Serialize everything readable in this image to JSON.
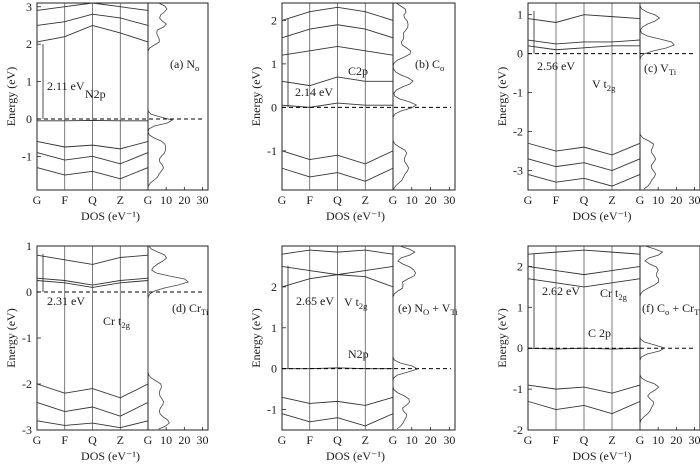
{
  "figure": {
    "panels": [
      {
        "label": "(a) N",
        "label_sub": "o",
        "ylabel": "Energy (eV)",
        "xlabel": "DOS (eV⁻¹)",
        "kpoints": [
          "G",
          "F",
          "Q",
          "Z",
          "G"
        ],
        "dos_ticks": [
          "10",
          "20",
          "30"
        ],
        "ylim": [
          -1.9,
          3.1
        ],
        "yticks": [
          -1,
          0,
          1,
          2,
          3
        ],
        "gap_text": "2.11 eV",
        "annotations": [
          {
            "text": "N2p",
            "sub": ""
          }
        ]
      },
      {
        "label": "(b) C",
        "label_sub": "o",
        "ylabel": "Energy (eV)",
        "xlabel": "DOS (eV⁻¹)",
        "kpoints": [
          "G",
          "F",
          "Q",
          "Z",
          "G"
        ],
        "dos_ticks": [
          "10",
          "20",
          "30"
        ],
        "ylim": [
          -1.9,
          2.4
        ],
        "yticks": [
          -1,
          0,
          1,
          2
        ],
        "gap_text": "2.14 eV",
        "annotations": [
          {
            "text": "C2p",
            "sub": ""
          }
        ]
      },
      {
        "label": "(c) V",
        "label_sub": "Ti",
        "ylabel": "Energy (eV)",
        "xlabel": "DOS (eV⁻¹)",
        "kpoints": [
          "G",
          "F",
          "Q",
          "Z",
          "G"
        ],
        "dos_ticks": [
          "10",
          "20",
          "30"
        ],
        "ylim": [
          -3.5,
          1.3
        ],
        "yticks": [
          -3,
          -2,
          -1,
          0,
          1
        ],
        "gap_text": "2.56 eV",
        "annotations": [
          {
            "text": "V t",
            "sub": "2g"
          }
        ]
      },
      {
        "label": "(d) Cr",
        "label_sub": "Ti",
        "ylabel": "Energy (eV)",
        "xlabel": "DOS (eV⁻¹)",
        "kpoints": [
          "G",
          "F",
          "Q",
          "Z",
          "G"
        ],
        "dos_ticks": [
          "10",
          "20",
          "30"
        ],
        "ylim": [
          -3,
          1
        ],
        "yticks": [
          -3,
          -2,
          -1,
          0,
          1
        ],
        "gap_text": "2.31 eV",
        "annotations": [
          {
            "text": "Cr t",
            "sub": "2g"
          }
        ]
      },
      {
        "label": "(e) N",
        "label_sub": "O",
        "label_extra": " + V",
        "label_extra_sub": "Ti",
        "ylabel": "Energy (eV)",
        "xlabel": "DOS (eV⁻¹)",
        "kpoints": [
          "G",
          "F",
          "Q",
          "Z",
          "G"
        ],
        "dos_ticks": [
          "10",
          "20",
          "30"
        ],
        "ylim": [
          -1.5,
          3.0
        ],
        "yticks": [
          -1,
          0,
          1,
          2
        ],
        "gap_text": "2.65 eV",
        "annotations": [
          {
            "text": "V t",
            "sub": "2g"
          },
          {
            "text": "N2p",
            "sub": ""
          }
        ]
      },
      {
        "label": "(f) C",
        "label_sub": "o",
        "label_extra": " + Cr",
        "label_extra_sub": "Ti",
        "ylabel": "Energy (eV)",
        "xlabel": "DOS (eV⁻¹)",
        "kpoints": [
          "G",
          "F",
          "Q",
          "Z",
          "G"
        ],
        "dos_ticks": [
          "10",
          "20",
          "30"
        ],
        "ylim": [
          -2.0,
          2.5
        ],
        "yticks": [
          -2,
          -1,
          0,
          1,
          2
        ],
        "gap_text": "2.62 eV",
        "annotations": [
          {
            "text": "Cr t",
            "sub": "2g"
          },
          {
            "text": "C 2p",
            "sub": ""
          }
        ]
      }
    ]
  },
  "chart_data": [
    {
      "type": "line",
      "panel": "(a)",
      "x": [
        "G",
        "F",
        "Q",
        "Z",
        "G"
      ],
      "ylim": [
        -1.9,
        3.1
      ],
      "fermi_level": 0,
      "band_gap_eV": 2.11,
      "series": [
        {
          "values": [
            -0.05,
            -0.05,
            -0.04,
            -0.05,
            -0.05
          ]
        },
        {
          "values": [
            2.06,
            2.2,
            2.5,
            2.3,
            2.06
          ]
        },
        {
          "values": [
            2.5,
            2.6,
            2.8,
            2.7,
            2.5
          ]
        },
        {
          "values": [
            2.9,
            3.0,
            3.1,
            3.0,
            2.9
          ]
        },
        {
          "values": [
            -0.6,
            -0.75,
            -0.7,
            -0.8,
            -0.6
          ]
        },
        {
          "values": [
            -0.9,
            -1.1,
            -1.0,
            -1.2,
            -0.9
          ]
        },
        {
          "values": [
            -1.3,
            -1.5,
            -1.4,
            -1.6,
            -1.3
          ]
        }
      ]
    },
    {
      "type": "line",
      "panel": "(b)",
      "x": [
        "G",
        "F",
        "Q",
        "Z",
        "G"
      ],
      "ylim": [
        -1.9,
        2.4
      ],
      "fermi_level": 0,
      "band_gap_eV": 2.14,
      "series": [
        {
          "values": [
            0.05,
            0.0,
            0.1,
            0.05,
            0.05
          ]
        },
        {
          "values": [
            0.6,
            0.5,
            0.7,
            0.6,
            0.6
          ]
        },
        {
          "values": [
            1.2,
            1.3,
            1.4,
            1.3,
            1.2
          ]
        },
        {
          "values": [
            1.6,
            1.8,
            1.9,
            1.8,
            1.6
          ]
        },
        {
          "values": [
            2.0,
            2.2,
            2.3,
            2.2,
            2.0
          ]
        },
        {
          "values": [
            -1.0,
            -1.2,
            -1.1,
            -1.3,
            -1.0
          ]
        },
        {
          "values": [
            -1.4,
            -1.6,
            -1.5,
            -1.7,
            -1.4
          ]
        }
      ]
    },
    {
      "type": "line",
      "panel": "(c)",
      "x": [
        "G",
        "F",
        "Q",
        "Z",
        "G"
      ],
      "ylim": [
        -3.5,
        1.3
      ],
      "fermi_level": 0,
      "band_gap_eV": 2.56,
      "series": [
        {
          "values": [
            0.2,
            0.1,
            0.15,
            0.2,
            0.2
          ]
        },
        {
          "values": [
            0.35,
            0.25,
            0.3,
            0.3,
            0.35
          ]
        },
        {
          "values": [
            0.9,
            0.8,
            1.0,
            0.95,
            0.9
          ]
        },
        {
          "values": [
            -2.3,
            -2.5,
            -2.4,
            -2.6,
            -2.3
          ]
        },
        {
          "values": [
            -2.7,
            -2.9,
            -2.8,
            -3.0,
            -2.7
          ]
        },
        {
          "values": [
            -3.1,
            -3.3,
            -3.2,
            -3.4,
            -3.1
          ]
        }
      ]
    },
    {
      "type": "line",
      "panel": "(d)",
      "x": [
        "G",
        "F",
        "Q",
        "Z",
        "G"
      ],
      "ylim": [
        -3,
        1
      ],
      "fermi_level": 0,
      "band_gap_eV": 2.31,
      "series": [
        {
          "values": [
            0.25,
            0.2,
            0.1,
            0.2,
            0.25
          ]
        },
        {
          "values": [
            0.3,
            0.25,
            0.15,
            0.25,
            0.3
          ]
        },
        {
          "values": [
            0.8,
            0.7,
            0.6,
            0.75,
            0.8
          ]
        },
        {
          "values": [
            -2.0,
            -2.2,
            -2.1,
            -2.3,
            -2.0
          ]
        },
        {
          "values": [
            -2.4,
            -2.6,
            -2.5,
            -2.7,
            -2.4
          ]
        },
        {
          "values": [
            -2.8,
            -2.9,
            -2.85,
            -2.95,
            -2.8
          ]
        }
      ]
    },
    {
      "type": "line",
      "panel": "(e)",
      "x": [
        "G",
        "F",
        "Q",
        "Z",
        "G"
      ],
      "ylim": [
        -1.5,
        3.0
      ],
      "fermi_level": 0,
      "band_gap_eV": 2.65,
      "series": [
        {
          "values": [
            0.0,
            0.0,
            0.02,
            0.0,
            0.0
          ]
        },
        {
          "values": [
            2.0,
            2.2,
            2.3,
            2.25,
            2.0
          ]
        },
        {
          "values": [
            2.5,
            2.4,
            2.3,
            2.4,
            2.5
          ]
        },
        {
          "values": [
            2.8,
            2.9,
            2.85,
            2.9,
            2.8
          ]
        },
        {
          "values": [
            -0.7,
            -0.85,
            -0.8,
            -0.9,
            -0.7
          ]
        },
        {
          "values": [
            -1.1,
            -1.3,
            -1.2,
            -1.4,
            -1.1
          ]
        }
      ]
    },
    {
      "type": "line",
      "panel": "(f)",
      "x": [
        "G",
        "F",
        "Q",
        "Z",
        "G"
      ],
      "ylim": [
        -2.0,
        2.5
      ],
      "fermi_level": 0,
      "band_gap_eV": 2.62,
      "series": [
        {
          "values": [
            0.0,
            -0.02,
            0.0,
            -0.02,
            0.0
          ]
        },
        {
          "values": [
            1.7,
            1.6,
            1.5,
            1.6,
            1.7
          ]
        },
        {
          "values": [
            2.0,
            1.9,
            1.8,
            1.9,
            2.0
          ]
        },
        {
          "values": [
            2.3,
            2.35,
            2.4,
            2.35,
            2.3
          ]
        },
        {
          "values": [
            -0.9,
            -1.0,
            -0.95,
            -1.1,
            -0.9
          ]
        },
        {
          "values": [
            -1.3,
            -1.5,
            -1.4,
            -1.6,
            -1.3
          ]
        }
      ]
    }
  ]
}
